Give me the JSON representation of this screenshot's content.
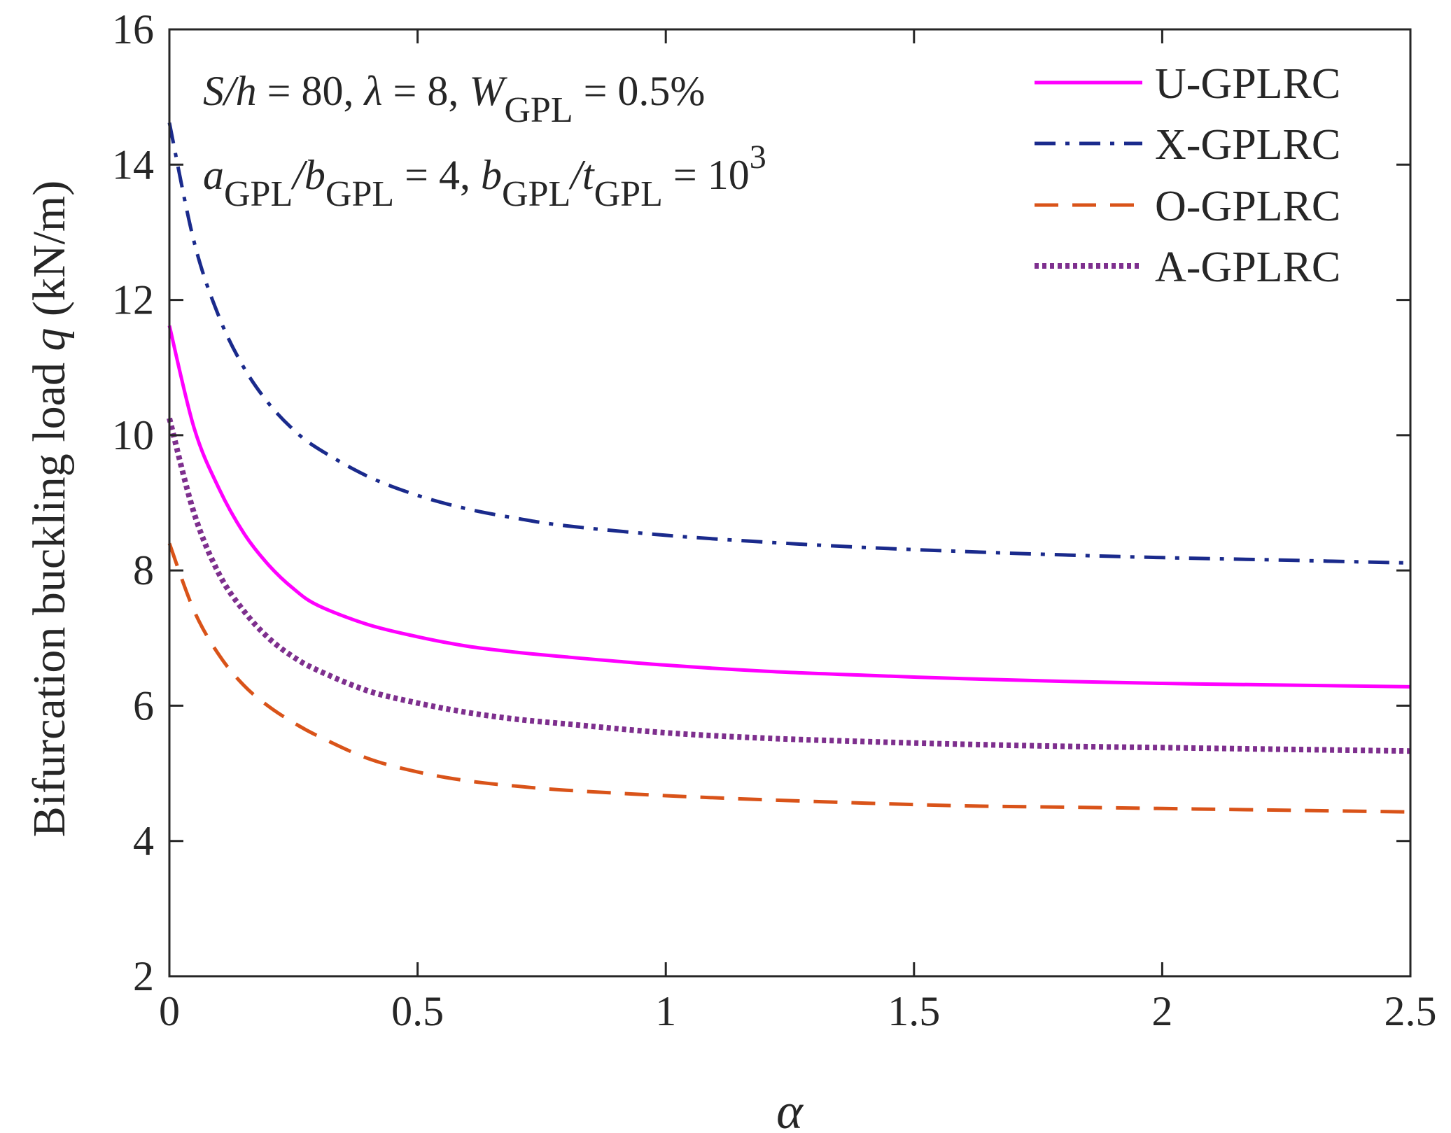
{
  "chart_data": {
    "type": "line",
    "xlabel": "α",
    "ylabel_prefix": "Bifurcation buckling load ",
    "ylabel_var": "q",
    "ylabel_suffix": " (kN/m)",
    "xlim": [
      0,
      2.5
    ],
    "ylim": [
      2,
      16
    ],
    "xticks": [
      0,
      0.5,
      1,
      1.5,
      2,
      2.5
    ],
    "xtick_labels": [
      "0",
      "0.5",
      "1",
      "1.5",
      "2",
      "2.5"
    ],
    "yticks": [
      2,
      4,
      6,
      8,
      10,
      12,
      14,
      16
    ],
    "ytick_labels": [
      "2",
      "4",
      "6",
      "8",
      "10",
      "12",
      "14",
      "16"
    ],
    "grid": false,
    "legend_position": "top-right",
    "annotations": {
      "line1": {
        "s_over_h": "S/h",
        "eq80": " = 80, ",
        "lambda": "λ",
        "eq8": " = 8, ",
        "w": "W",
        "w_sub": "GPL",
        "w_val": " = 0.5%"
      },
      "line2": {
        "a": "a",
        "a_sub": "GPL",
        "slash_b": "/b",
        "b_sub": "GPL",
        "eq4": " = 4, ",
        "b2": "b",
        "b2_sub": "GPL",
        "slash_t": "/t",
        "t_sub": "GPL",
        "eq10": " = 10",
        "exp": "3"
      }
    },
    "series": [
      {
        "name": "U-GPLRC",
        "color": "#ff00ff",
        "dash": "solid",
        "x": [
          0,
          0.05,
          0.1,
          0.15,
          0.2,
          0.25,
          0.3,
          0.4,
          0.5,
          0.6,
          0.7,
          0.8,
          1.0,
          1.2,
          1.4,
          1.6,
          1.8,
          2.0,
          2.2,
          2.5
        ],
        "y": [
          11.62,
          10.1,
          9.21,
          8.55,
          8.08,
          7.73,
          7.48,
          7.2,
          7.02,
          6.88,
          6.79,
          6.72,
          6.6,
          6.51,
          6.45,
          6.4,
          6.36,
          6.33,
          6.31,
          6.28
        ]
      },
      {
        "name": "X-GPLRC",
        "color": "#1a2a8c",
        "dash": "dashdot",
        "x": [
          0,
          0.05,
          0.1,
          0.15,
          0.2,
          0.25,
          0.3,
          0.4,
          0.5,
          0.6,
          0.7,
          0.8,
          1.0,
          1.2,
          1.4,
          1.6,
          1.8,
          2.0,
          2.2,
          2.5
        ],
        "y": [
          14.62,
          12.85,
          11.75,
          11.0,
          10.47,
          10.08,
          9.8,
          9.39,
          9.11,
          8.91,
          8.77,
          8.66,
          8.52,
          8.42,
          8.34,
          8.28,
          8.23,
          8.19,
          8.16,
          8.11
        ]
      },
      {
        "name": "O-GPLRC",
        "color": "#d95319",
        "dash": "dashed",
        "x": [
          0,
          0.05,
          0.1,
          0.15,
          0.2,
          0.25,
          0.3,
          0.4,
          0.5,
          0.6,
          0.7,
          0.8,
          1.0,
          1.2,
          1.4,
          1.6,
          1.8,
          2.0,
          2.2,
          2.5
        ],
        "y": [
          8.4,
          7.4,
          6.75,
          6.3,
          5.99,
          5.75,
          5.55,
          5.22,
          5.02,
          4.89,
          4.81,
          4.75,
          4.67,
          4.61,
          4.56,
          4.52,
          4.5,
          4.48,
          4.46,
          4.43
        ]
      },
      {
        "name": "A-GPLRC",
        "color": "#7e2f8e",
        "dash": "dotted",
        "x": [
          0,
          0.05,
          0.1,
          0.15,
          0.2,
          0.25,
          0.3,
          0.4,
          0.5,
          0.6,
          0.7,
          0.8,
          1.0,
          1.2,
          1.4,
          1.6,
          1.8,
          2.0,
          2.2,
          2.5
        ],
        "y": [
          10.25,
          8.84,
          7.95,
          7.4,
          7.0,
          6.72,
          6.52,
          6.22,
          6.04,
          5.9,
          5.8,
          5.73,
          5.6,
          5.52,
          5.47,
          5.43,
          5.4,
          5.38,
          5.36,
          5.33
        ]
      }
    ]
  }
}
